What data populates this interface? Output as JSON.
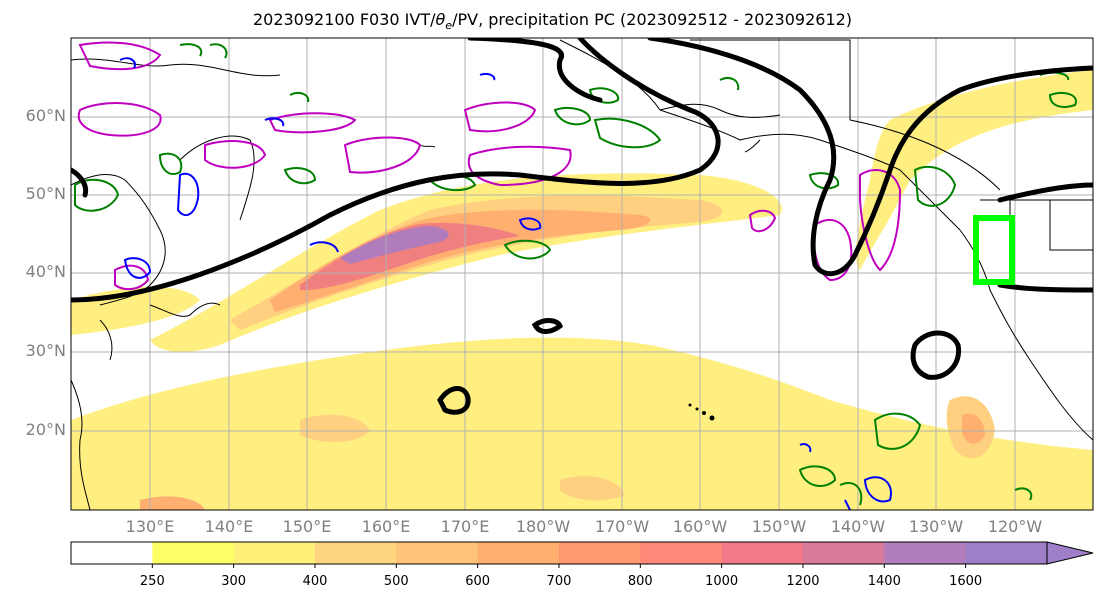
{
  "title": "2023092100 F030 IVT/θe/PV, precipitation PC (2023092512 - 2023092612)",
  "title_parts": {
    "pre": "2023092100 F030 IVT/",
    "theta": "θ",
    "sub": "e",
    "post": "/PV, precipitation PC (2023092512 - 2023092612)"
  },
  "lat_labels": [
    "60°N",
    "50°N",
    "40°N",
    "30°N",
    "20°N"
  ],
  "lon_labels": [
    "130°E",
    "140°E",
    "150°E",
    "160°E",
    "170°E",
    "180°W",
    "170°W",
    "160°W",
    "150°W",
    "140°W",
    "130°W",
    "120°W"
  ],
  "colorbar": {
    "ticks": [
      "250",
      "300",
      "400",
      "500",
      "600",
      "700",
      "800",
      "1000",
      "1200",
      "1400",
      "1600"
    ],
    "colors": [
      "#ffffff",
      "#ffff66",
      "#fff07a",
      "#ffd580",
      "#ffc47a",
      "#ffb070",
      "#ff9a70",
      "#ff8a7a",
      "#f27a88",
      "#d87a9c",
      "#b07cbc",
      "#9f7fc8"
    ]
  },
  "colors": {
    "ivt_low": "#ffef80",
    "ivt_mid": "#ffb070",
    "ivt_high": "#f08080",
    "ivt_peak": "#a07cc8",
    "theta_e": "#000000",
    "pv_green": "#008000",
    "pv_blue": "#0000ff",
    "pv_magenta": "#c000c0",
    "box": "#00ff00",
    "grid": "#b0b0b0"
  }
}
